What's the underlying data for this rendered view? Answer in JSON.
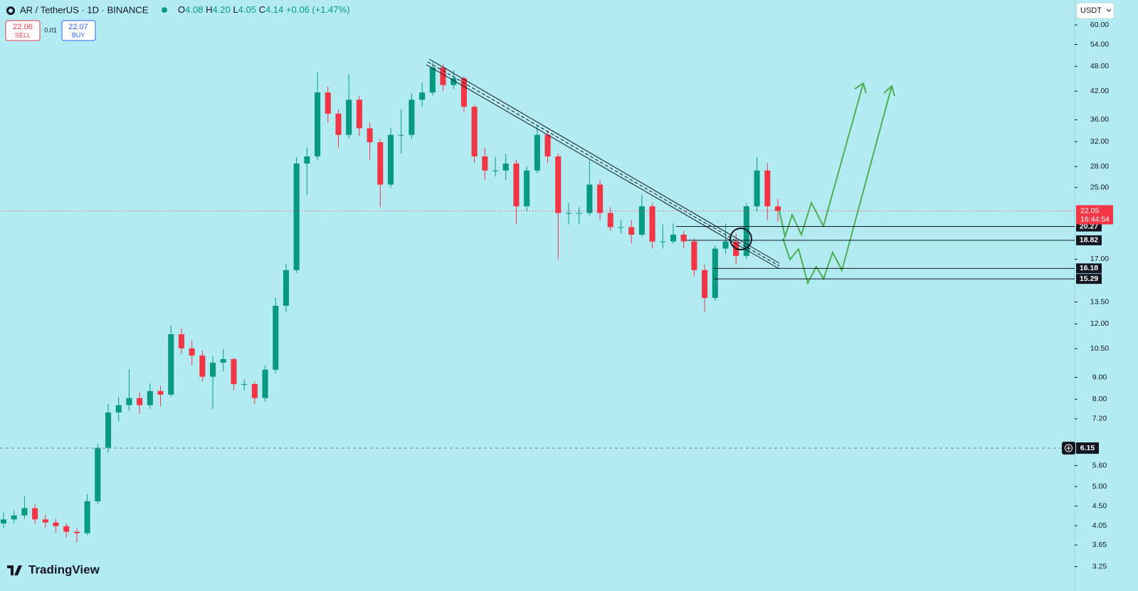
{
  "chart_data": {
    "type": "candlestick",
    "symbol_title": "AR / TetherUS · 1D · BINANCE",
    "ohlc_legend": [
      {
        "label": "O",
        "value": "4.08"
      },
      {
        "label": "H",
        "value": "4.20"
      },
      {
        "label": "L",
        "value": "4.05"
      },
      {
        "label": "C",
        "value": "4.14"
      }
    ],
    "change": "+0.06",
    "change_pct": "(+1.47%)",
    "sell": {
      "price": "22.06",
      "label": "SELL"
    },
    "spread": "0.01",
    "buy": {
      "price": "22.07",
      "label": "BUY"
    },
    "currency": "USDT",
    "brand": "TradingView",
    "log_scale": true,
    "up_color": "#089981",
    "down_color": "#f23645",
    "ylim": [
      3.03,
      68.6
    ],
    "yticks": [
      {
        "value": 60,
        "label": "60.00"
      },
      {
        "value": 54,
        "label": "54.00"
      },
      {
        "value": 48,
        "label": "48.00"
      },
      {
        "value": 42,
        "label": "42.00"
      },
      {
        "value": 36,
        "label": "36.00"
      },
      {
        "value": 32,
        "label": "32.00"
      },
      {
        "value": 28,
        "label": "28.00"
      },
      {
        "value": 25,
        "label": "25.00"
      },
      {
        "value": 17,
        "label": "17.00"
      },
      {
        "value": 13.5,
        "label": "13.50"
      },
      {
        "value": 12,
        "label": "12.00"
      },
      {
        "value": 10.5,
        "label": "10.50"
      },
      {
        "value": 9,
        "label": "9.00"
      },
      {
        "value": 8,
        "label": "8.00"
      },
      {
        "value": 7.2,
        "label": "7.20"
      },
      {
        "value": 5.6,
        "label": "5.60"
      },
      {
        "value": 5,
        "label": "5.00"
      },
      {
        "value": 4.5,
        "label": "4.50"
      },
      4.05,
      3.65,
      3.25
    ],
    "current_price": 22.05,
    "countdown": "16:44:54",
    "levels": [
      20.27,
      18.82,
      16.18,
      15.29
    ],
    "crosshair_price": 6.15,
    "open": [
      4.1,
      4.19,
      4.28,
      4.45,
      4.19,
      4.12,
      4.04,
      3.92,
      3.89,
      4.62,
      6.16,
      7.45,
      7.75,
      8.05,
      7.75,
      8.36,
      8.2,
      11.35,
      10.52,
      10.12,
      9.03,
      9.74,
      9.93,
      8.68,
      8.68,
      8.05,
      9.38,
      13.23,
      16.03,
      28.45,
      29.56,
      41.7,
      37.2,
      33.2,
      40.1,
      34.4,
      31.9,
      25.4,
      33.2,
      33.2,
      40.1,
      41.7,
      47.7,
      43.4,
      45.0,
      38.6,
      29.56,
      27.4,
      27.4,
      28.45,
      22.6,
      27.4,
      33.2,
      29.56,
      21.8,
      21.8,
      21.8,
      25.4,
      21.8,
      20.2,
      20.2,
      19.4,
      22.6,
      18.7,
      18.7,
      19.4,
      18.7,
      16.03,
      13.8,
      18.0,
      18.7,
      17.3,
      22.6,
      27.4,
      22.6
    ],
    "high": [
      4.35,
      4.4,
      4.75,
      4.55,
      4.3,
      4.2,
      4.1,
      4.0,
      4.8,
      6.3,
      7.8,
      8.1,
      9.4,
      8.3,
      8.7,
      8.6,
      11.9,
      11.7,
      11.0,
      10.4,
      10.1,
      10.5,
      10.0,
      8.9,
      8.8,
      9.6,
      13.8,
      16.6,
      29.5,
      31.0,
      46.5,
      43.0,
      38.0,
      46.0,
      41.0,
      35.5,
      32.5,
      34.5,
      38.0,
      41.5,
      44.0,
      49.0,
      48.5,
      47.0,
      45.5,
      39.0,
      31.0,
      29.5,
      30.0,
      29.0,
      28.0,
      35.0,
      34.0,
      30.0,
      23.0,
      22.5,
      29.0,
      26.0,
      22.5,
      21.0,
      21.0,
      24.0,
      23.0,
      20.5,
      20.6,
      19.8,
      19.0,
      16.5,
      18.3,
      20.6,
      19.5,
      23.0,
      29.5,
      28.5,
      23.5
    ],
    "low": [
      4.0,
      4.1,
      4.2,
      4.1,
      4.0,
      3.9,
      3.8,
      3.7,
      3.85,
      4.55,
      6.0,
      7.1,
      7.5,
      7.4,
      7.6,
      7.7,
      8.1,
      10.2,
      9.6,
      8.8,
      7.6,
      9.3,
      8.4,
      8.4,
      7.8,
      7.9,
      9.2,
      12.8,
      15.8,
      24.0,
      29.0,
      35.5,
      31.0,
      32.5,
      33.0,
      29.0,
      22.5,
      25.0,
      30.0,
      32.5,
      38.5,
      41.0,
      42.0,
      42.5,
      37.5,
      28.5,
      26.0,
      26.5,
      26.0,
      20.5,
      22.0,
      27.0,
      28.5,
      17.0,
      20.5,
      20.5,
      21.5,
      21.0,
      19.8,
      19.5,
      18.5,
      19.2,
      18.0,
      18.0,
      18.5,
      18.0,
      15.5,
      12.8,
      13.6,
      17.5,
      16.5,
      17.0,
      22.0,
      21.0,
      20.8
    ],
    "close": [
      4.19,
      4.28,
      4.45,
      4.19,
      4.12,
      4.04,
      3.92,
      3.89,
      4.62,
      6.16,
      7.45,
      7.75,
      8.05,
      7.75,
      8.36,
      8.2,
      11.35,
      10.52,
      10.12,
      9.03,
      9.74,
      9.93,
      8.68,
      8.68,
      8.05,
      9.38,
      13.23,
      16.03,
      28.45,
      29.56,
      41.7,
      37.2,
      33.2,
      40.1,
      34.4,
      31.9,
      25.4,
      33.2,
      33.2,
      40.1,
      41.7,
      47.7,
      43.4,
      45.0,
      38.6,
      29.56,
      27.4,
      27.4,
      28.45,
      22.6,
      27.4,
      33.2,
      29.56,
      21.8,
      21.8,
      21.8,
      25.4,
      21.8,
      20.2,
      20.2,
      19.4,
      22.6,
      18.7,
      18.7,
      19.4,
      18.7,
      16.03,
      13.8,
      18.0,
      18.7,
      17.3,
      22.6,
      27.4,
      22.6,
      22.05
    ]
  }
}
